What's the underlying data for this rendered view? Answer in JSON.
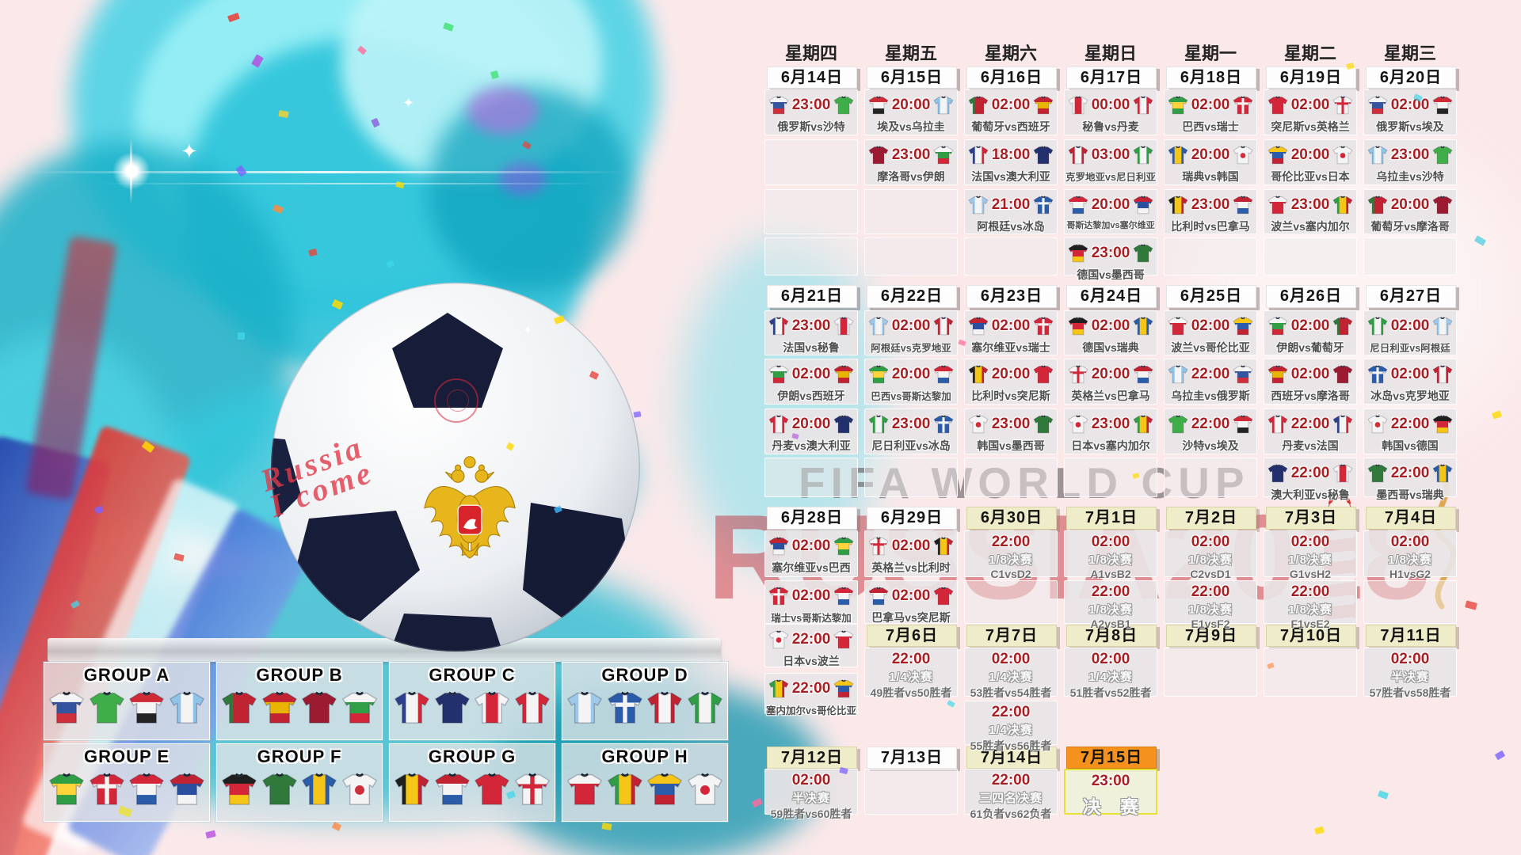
{
  "weekdays": [
    "星期四",
    "星期五",
    "星期六",
    "星期日",
    "星期一",
    "星期二",
    "星期三"
  ],
  "date_headers": [
    {
      "col": 0,
      "band": "d1",
      "label": "6月14日",
      "variant": "white"
    },
    {
      "col": 1,
      "band": "d1",
      "label": "6月15日",
      "variant": "white"
    },
    {
      "col": 2,
      "band": "d1",
      "label": "6月16日",
      "variant": "white"
    },
    {
      "col": 3,
      "band": "d1",
      "label": "6月17日",
      "variant": "white"
    },
    {
      "col": 4,
      "band": "d1",
      "label": "6月18日",
      "variant": "white"
    },
    {
      "col": 5,
      "band": "d1",
      "label": "6月19日",
      "variant": "white"
    },
    {
      "col": 6,
      "band": "d1",
      "label": "6月20日",
      "variant": "white"
    },
    {
      "col": 0,
      "band": "d2",
      "label": "6月21日",
      "variant": "white"
    },
    {
      "col": 1,
      "band": "d2",
      "label": "6月22日",
      "variant": "white"
    },
    {
      "col": 2,
      "band": "d2",
      "label": "6月23日",
      "variant": "white"
    },
    {
      "col": 3,
      "band": "d2",
      "label": "6月24日",
      "variant": "white"
    },
    {
      "col": 4,
      "band": "d2",
      "label": "6月25日",
      "variant": "white"
    },
    {
      "col": 5,
      "band": "d2",
      "label": "6月26日",
      "variant": "white"
    },
    {
      "col": 6,
      "band": "d2",
      "label": "6月27日",
      "variant": "white"
    },
    {
      "col": 0,
      "band": "d3",
      "label": "6月28日",
      "variant": "white"
    },
    {
      "col": 1,
      "band": "d3",
      "label": "6月29日",
      "variant": "white"
    },
    {
      "col": 2,
      "band": "d3",
      "label": "6月30日",
      "variant": "beige"
    },
    {
      "col": 3,
      "band": "d3",
      "label": "7月1日",
      "variant": "beige"
    },
    {
      "col": 4,
      "band": "d3",
      "label": "7月2日",
      "variant": "beige"
    },
    {
      "col": 5,
      "band": "d3",
      "label": "7月3日",
      "variant": "beige"
    },
    {
      "col": 6,
      "band": "d3",
      "label": "7月4日",
      "variant": "beige"
    },
    {
      "col": 1,
      "band": "d4",
      "label": "7月6日",
      "variant": "beige"
    },
    {
      "col": 2,
      "band": "d4",
      "label": "7月7日",
      "variant": "beige"
    },
    {
      "col": 3,
      "band": "d4",
      "label": "7月8日",
      "variant": "beige"
    },
    {
      "col": 4,
      "band": "d4",
      "label": "7月9日",
      "variant": "beige"
    },
    {
      "col": 5,
      "band": "d4",
      "label": "7月10日",
      "variant": "beige"
    },
    {
      "col": 6,
      "band": "d4",
      "label": "7月11日",
      "variant": "beige"
    },
    {
      "col": 0,
      "band": "d5",
      "label": "7月12日",
      "variant": "beige"
    },
    {
      "col": 1,
      "band": "d5",
      "label": "7月13日",
      "variant": "white"
    },
    {
      "col": 2,
      "band": "d5",
      "label": "7月14日",
      "variant": "beige"
    },
    {
      "col": 3,
      "band": "d5",
      "label": "7月15日",
      "variant": "orange"
    }
  ],
  "matches": [
    {
      "col": 0,
      "band": "r1",
      "time": "23:00",
      "teams": "俄罗斯vs沙特",
      "kits": [
        "RU",
        "SA"
      ]
    },
    {
      "col": 1,
      "band": "r1",
      "time": "20:00",
      "teams": "埃及vs乌拉圭",
      "kits": [
        "EG",
        "UY"
      ]
    },
    {
      "col": 2,
      "band": "r1",
      "time": "02:00",
      "teams": "葡萄牙vs西班牙",
      "kits": [
        "PT",
        "ES"
      ]
    },
    {
      "col": 3,
      "band": "r1",
      "time": "00:00",
      "teams": "秘鲁vs丹麦",
      "kits": [
        "PE",
        "DK"
      ]
    },
    {
      "col": 4,
      "band": "r1",
      "time": "02:00",
      "teams": "巴西vs瑞士",
      "kits": [
        "BR",
        "CH"
      ]
    },
    {
      "col": 5,
      "band": "r1",
      "time": "02:00",
      "teams": "突尼斯vs英格兰",
      "kits": [
        "TN",
        "EN"
      ]
    },
    {
      "col": 6,
      "band": "r1",
      "time": "02:00",
      "teams": "俄罗斯vs埃及",
      "kits": [
        "RU",
        "EG"
      ]
    },
    {
      "col": 1,
      "band": "r2",
      "time": "23:00",
      "teams": "摩洛哥vs伊朗",
      "kits": [
        "MA",
        "IR"
      ]
    },
    {
      "col": 2,
      "band": "r2",
      "time": "18:00",
      "teams": "法国vs澳大利亚",
      "kits": [
        "FR",
        "AU"
      ]
    },
    {
      "col": 3,
      "band": "r2",
      "time": "03:00",
      "teams": "克罗地亚vs尼日利亚",
      "kits": [
        "HR",
        "NG"
      ]
    },
    {
      "col": 4,
      "band": "r2",
      "time": "20:00",
      "teams": "瑞典vs韩国",
      "kits": [
        "SE",
        "KR"
      ]
    },
    {
      "col": 5,
      "band": "r2",
      "time": "20:00",
      "teams": "哥伦比亚vs日本",
      "kits": [
        "CO",
        "JP"
      ]
    },
    {
      "col": 6,
      "band": "r2",
      "time": "23:00",
      "teams": "乌拉圭vs沙特",
      "kits": [
        "UY",
        "SA"
      ]
    },
    {
      "col": 2,
      "band": "r3",
      "time": "21:00",
      "teams": "阿根廷vs冰岛",
      "kits": [
        "AR",
        "IS"
      ]
    },
    {
      "col": 3,
      "band": "r3",
      "time": "20:00",
      "teams": "哥斯达黎加vs塞尔维亚",
      "kits": [
        "CR",
        "RS"
      ]
    },
    {
      "col": 4,
      "band": "r3",
      "time": "23:00",
      "teams": "比利时vs巴拿马",
      "kits": [
        "BE",
        "PA"
      ]
    },
    {
      "col": 5,
      "band": "r3",
      "time": "23:00",
      "teams": "波兰vs塞内加尔",
      "kits": [
        "PL",
        "SN"
      ]
    },
    {
      "col": 6,
      "band": "r3",
      "time": "20:00",
      "teams": "葡萄牙vs摩洛哥",
      "kits": [
        "PT",
        "MA"
      ]
    },
    {
      "col": 3,
      "band": "r4",
      "time": "23:00",
      "teams": "德国vs墨西哥",
      "kits": [
        "DE",
        "MX"
      ]
    },
    {
      "col": 0,
      "band": "r5",
      "time": "23:00",
      "teams": "法国vs秘鲁",
      "kits": [
        "FR",
        "PE"
      ]
    },
    {
      "col": 1,
      "band": "r5",
      "time": "02:00",
      "teams": "阿根廷vs克罗地亚",
      "kits": [
        "AR",
        "HR"
      ]
    },
    {
      "col": 2,
      "band": "r5",
      "time": "02:00",
      "teams": "塞尔维亚vs瑞士",
      "kits": [
        "RS",
        "CH"
      ]
    },
    {
      "col": 3,
      "band": "r5",
      "time": "02:00",
      "teams": "德国vs瑞典",
      "kits": [
        "DE",
        "SE"
      ]
    },
    {
      "col": 4,
      "band": "r5",
      "time": "02:00",
      "teams": "波兰vs哥伦比亚",
      "kits": [
        "PL",
        "CO"
      ]
    },
    {
      "col": 5,
      "band": "r5",
      "time": "02:00",
      "teams": "伊朗vs葡萄牙",
      "kits": [
        "IR",
        "PT"
      ]
    },
    {
      "col": 6,
      "band": "r5",
      "time": "02:00",
      "teams": "尼日利亚vs阿根廷",
      "kits": [
        "NG",
        "AR"
      ]
    },
    {
      "col": 0,
      "band": "r6",
      "time": "02:00",
      "teams": "伊朗vs西班牙",
      "kits": [
        "IR",
        "ES"
      ]
    },
    {
      "col": 1,
      "band": "r6",
      "time": "20:00",
      "teams": "巴西vs哥斯达黎加",
      "kits": [
        "BR",
        "CR"
      ]
    },
    {
      "col": 2,
      "band": "r6",
      "time": "20:00",
      "teams": "比利时vs突尼斯",
      "kits": [
        "BE",
        "TN"
      ]
    },
    {
      "col": 3,
      "band": "r6",
      "time": "20:00",
      "teams": "英格兰vs巴拿马",
      "kits": [
        "EN",
        "PA"
      ]
    },
    {
      "col": 4,
      "band": "r6",
      "time": "22:00",
      "teams": "乌拉圭vs俄罗斯",
      "kits": [
        "UY",
        "RU"
      ]
    },
    {
      "col": 5,
      "band": "r6",
      "time": "02:00",
      "teams": "西班牙vs摩洛哥",
      "kits": [
        "ES",
        "MA"
      ]
    },
    {
      "col": 6,
      "band": "r6",
      "time": "02:00",
      "teams": "冰岛vs克罗地亚",
      "kits": [
        "IS",
        "HR"
      ]
    },
    {
      "col": 0,
      "band": "r7",
      "time": "20:00",
      "teams": "丹麦vs澳大利亚",
      "kits": [
        "DK",
        "AU"
      ]
    },
    {
      "col": 1,
      "band": "r7",
      "time": "23:00",
      "teams": "尼日利亚vs冰岛",
      "kits": [
        "NG",
        "IS"
      ]
    },
    {
      "col": 2,
      "band": "r7",
      "time": "23:00",
      "teams": "韩国vs墨西哥",
      "kits": [
        "KR",
        "MX"
      ]
    },
    {
      "col": 3,
      "band": "r7",
      "time": "23:00",
      "teams": "日本vs塞内加尔",
      "kits": [
        "JP",
        "SN"
      ]
    },
    {
      "col": 4,
      "band": "r7",
      "time": "22:00",
      "teams": "沙特vs埃及",
      "kits": [
        "SA",
        "EG"
      ]
    },
    {
      "col": 5,
      "band": "r7",
      "time": "22:00",
      "teams": "丹麦vs法国",
      "kits": [
        "DK",
        "FR"
      ]
    },
    {
      "col": 6,
      "band": "r7",
      "time": "22:00",
      "teams": "韩国vs德国",
      "kits": [
        "KR",
        "DE"
      ]
    },
    {
      "col": 5,
      "band": "r8",
      "time": "22:00",
      "teams": "澳大利亚vs秘鲁",
      "kits": [
        "AU",
        "PE"
      ]
    },
    {
      "col": 6,
      "band": "r8",
      "time": "22:00",
      "teams": "墨西哥vs瑞典",
      "kits": [
        "MX",
        "SE"
      ]
    },
    {
      "col": 0,
      "band": "r9",
      "time": "02:00",
      "teams": "塞尔维亚vs巴西",
      "kits": [
        "RS",
        "BR"
      ]
    },
    {
      "col": 1,
      "band": "r9",
      "time": "02:00",
      "teams": "英格兰vs比利时",
      "kits": [
        "EN",
        "BE"
      ]
    },
    {
      "col": 0,
      "band": "r10",
      "time": "02:00",
      "teams": "瑞士vs哥斯达黎加",
      "kits": [
        "CH",
        "CR"
      ]
    },
    {
      "col": 1,
      "band": "r10",
      "time": "02:00",
      "teams": "巴拿马vs突尼斯",
      "kits": [
        "PA",
        "TN"
      ]
    },
    {
      "col": 0,
      "band": "r11",
      "time": "22:00",
      "teams": "日本vs波兰",
      "kits": [
        "JP",
        "PL"
      ]
    },
    {
      "col": 0,
      "band": "r12a",
      "time": "22:00",
      "teams": "塞内加尔vs哥伦比亚",
      "kits": [
        "SN",
        "CO"
      ]
    }
  ],
  "knockouts": [
    {
      "col": 2,
      "band": "r9",
      "time": "22:00",
      "stage": "1/8决赛",
      "pair": "C1vsD2"
    },
    {
      "col": 3,
      "band": "r9",
      "time": "02:00",
      "stage": "1/8决赛",
      "pair": "A1vsB2"
    },
    {
      "col": 4,
      "band": "r9",
      "time": "02:00",
      "stage": "1/8决赛",
      "pair": "C2vsD1"
    },
    {
      "col": 5,
      "band": "r9",
      "time": "02:00",
      "stage": "1/8决赛",
      "pair": "G1vsH2"
    },
    {
      "col": 6,
      "band": "r9",
      "time": "02:00",
      "stage": "1/8决赛",
      "pair": "H1vsG2"
    },
    {
      "col": 3,
      "band": "r10",
      "time": "22:00",
      "stage": "1/8决赛",
      "pair": "A2vsB1"
    },
    {
      "col": 4,
      "band": "r10",
      "time": "22:00",
      "stage": "1/8决赛",
      "pair": "E1vsF2"
    },
    {
      "col": 5,
      "band": "r10",
      "time": "22:00",
      "stage": "1/8决赛",
      "pair": "F1vsE2"
    },
    {
      "col": 1,
      "band": "r12",
      "time": "22:00",
      "stage": "1/4决赛",
      "pair": "49胜者vs50胜者"
    },
    {
      "col": 2,
      "band": "r12",
      "time": "02:00",
      "stage": "1/4决赛",
      "pair": "53胜者vs54胜者"
    },
    {
      "col": 3,
      "band": "r12",
      "time": "02:00",
      "stage": "1/4决赛",
      "pair": "51胜者vs52胜者"
    },
    {
      "col": 6,
      "band": "r12",
      "time": "02:00",
      "stage": "半决赛",
      "pair": "57胜者vs58胜者"
    },
    {
      "col": 2,
      "band": "r13",
      "time": "22:00",
      "stage": "1/4决赛",
      "pair": "55胜者vs56胜者"
    },
    {
      "col": 0,
      "band": "r14",
      "time": "02:00",
      "stage": "半决赛",
      "pair": "59胜者vs60胜者"
    },
    {
      "col": 2,
      "band": "r14",
      "time": "22:00",
      "stage": "三四名决赛",
      "pair": "61负者vs62负者"
    },
    {
      "col": 3,
      "band": "r14",
      "time": "23:00",
      "stage": "决 赛",
      "pair": "",
      "variant": "final"
    }
  ],
  "empty_cells": [
    {
      "col": 0,
      "band": "r2"
    },
    {
      "col": 0,
      "band": "r3"
    },
    {
      "col": 1,
      "band": "r3"
    },
    {
      "col": 0,
      "band": "r4"
    },
    {
      "col": 1,
      "band": "r4"
    },
    {
      "col": 2,
      "band": "r4"
    },
    {
      "col": 4,
      "band": "r4"
    },
    {
      "col": 5,
      "band": "r4"
    },
    {
      "col": 6,
      "band": "r4"
    },
    {
      "col": 0,
      "band": "r8"
    },
    {
      "col": 1,
      "band": "r8"
    },
    {
      "col": 2,
      "band": "r8"
    },
    {
      "col": 3,
      "band": "r8"
    },
    {
      "col": 4,
      "band": "r8"
    },
    {
      "col": 2,
      "band": "r10"
    },
    {
      "col": 6,
      "band": "r10"
    },
    {
      "col": 4,
      "band": "r12"
    },
    {
      "col": 5,
      "band": "r12"
    },
    {
      "col": 1,
      "band": "r14"
    }
  ],
  "groups": [
    {
      "name": "GROUP A",
      "kits": [
        "RU",
        "SA",
        "EG",
        "UY"
      ]
    },
    {
      "name": "GROUP B",
      "kits": [
        "PT",
        "ES",
        "MA",
        "IR"
      ]
    },
    {
      "name": "GROUP C",
      "kits": [
        "FR",
        "AU",
        "PE",
        "DK"
      ]
    },
    {
      "name": "GROUP D",
      "kits": [
        "AR",
        "IS",
        "HR",
        "NG"
      ]
    },
    {
      "name": "GROUP E",
      "kits": [
        "BR",
        "CH",
        "CR",
        "RS"
      ]
    },
    {
      "name": "GROUP F",
      "kits": [
        "DE",
        "MX",
        "SE",
        "KR"
      ]
    },
    {
      "name": "GROUP G",
      "kits": [
        "BE",
        "PA",
        "TN",
        "EN"
      ]
    },
    {
      "name": "GROUP H",
      "kits": [
        "PL",
        "SN",
        "CO",
        "JP"
      ]
    }
  ],
  "kit_colors": {
    "RU": {
      "dir": "h",
      "colors": [
        "#f4f4f4",
        "#33559f",
        "#cf2e3b"
      ]
    },
    "SA": {
      "dir": "s",
      "colors": [
        "#3fae49"
      ]
    },
    "EG": {
      "dir": "h",
      "colors": [
        "#ce2b37",
        "#f4f4f4",
        "#232323"
      ]
    },
    "UY": {
      "dir": "v",
      "colors": [
        "#8fc3e8",
        "#f4f4f4",
        "#8fc3e8"
      ]
    },
    "PT": {
      "dir": "v",
      "colors": [
        "#2f7a3b",
        "#c22333",
        "#c22333"
      ]
    },
    "ES": {
      "dir": "h",
      "colors": [
        "#c22333",
        "#e9b400",
        "#c22333"
      ]
    },
    "PE": {
      "dir": "v",
      "colors": [
        "#f4f4f4",
        "#d32638",
        "#f4f4f4"
      ]
    },
    "DK": {
      "dir": "v",
      "colors": [
        "#d32638",
        "#f4f4f4",
        "#d32638"
      ]
    },
    "BR": {
      "dir": "h",
      "colors": [
        "#2f9e44",
        "#ffd43b",
        "#2f9e44"
      ]
    },
    "CH": {
      "dir": "s",
      "colors": [
        "#d32638"
      ],
      "cross": "#f4f4f4"
    },
    "TN": {
      "dir": "s",
      "colors": [
        "#d32638"
      ]
    },
    "EN": {
      "dir": "s",
      "colors": [
        "#f4f4f4"
      ],
      "cross": "#d32638"
    },
    "MA": {
      "dir": "s",
      "colors": [
        "#9c1b31"
      ]
    },
    "IR": {
      "dir": "h",
      "colors": [
        "#f4f4f4",
        "#2f9e44",
        "#d32638"
      ]
    },
    "FR": {
      "dir": "v",
      "colors": [
        "#2c3f8f",
        "#f4f4f4",
        "#d32638"
      ]
    },
    "AU": {
      "dir": "s",
      "colors": [
        "#22306e"
      ]
    },
    "HR": {
      "dir": "v",
      "colors": [
        "#c22333",
        "#f4f4f4",
        "#c22333"
      ]
    },
    "NG": {
      "dir": "v",
      "colors": [
        "#2f9e44",
        "#f4f4f4",
        "#2f9e44"
      ]
    },
    "SE": {
      "dir": "v",
      "colors": [
        "#2a5caa",
        "#f5c518",
        "#2a5caa"
      ]
    },
    "KR": {
      "dir": "s",
      "colors": [
        "#f4f4f4"
      ],
      "dot": "#cf2e3b"
    },
    "CO": {
      "dir": "h",
      "colors": [
        "#f5c518",
        "#2a5caa",
        "#c22333"
      ]
    },
    "JP": {
      "dir": "s",
      "colors": [
        "#f4f4f4"
      ],
      "dot": "#d32638"
    },
    "AR": {
      "dir": "v",
      "colors": [
        "#9ec9ea",
        "#f4f4f4",
        "#9ec9ea"
      ]
    },
    "IS": {
      "dir": "s",
      "colors": [
        "#2a5caa"
      ],
      "cross": "#f4f4f4"
    },
    "CR": {
      "dir": "h",
      "colors": [
        "#d32638",
        "#f4f4f4",
        "#2a5caa"
      ]
    },
    "RS": {
      "dir": "h",
      "colors": [
        "#c22333",
        "#2a4f9f",
        "#f4f4f4"
      ]
    },
    "BE": {
      "dir": "v",
      "colors": [
        "#1f1f1f",
        "#f5c518",
        "#c22333"
      ]
    },
    "PA": {
      "dir": "h",
      "colors": [
        "#c22333",
        "#f4f4f4",
        "#2a5caa"
      ]
    },
    "DE": {
      "dir": "h",
      "colors": [
        "#1f1f1f",
        "#d32638",
        "#f5c518"
      ]
    },
    "MX": {
      "dir": "s",
      "colors": [
        "#2f7a3b"
      ]
    },
    "PL": {
      "dir": "h",
      "colors": [
        "#f4f4f4",
        "#d32638",
        "#d32638"
      ]
    },
    "SN": {
      "dir": "v",
      "colors": [
        "#2f9e44",
        "#f5c518",
        "#c22333"
      ]
    }
  },
  "watermarks": {
    "fifa": "FIFA WORLD CUP",
    "russia": "RUSSIA2018"
  },
  "ball_text": "Russia\nI come",
  "colors": {
    "time_red": "#a81e23",
    "header_beige": "#efecca",
    "header_orange": "#f5921e",
    "final_border": "#e4e234",
    "splash_teal": "#2cc3da",
    "background_pink": "#fbe9ea"
  }
}
